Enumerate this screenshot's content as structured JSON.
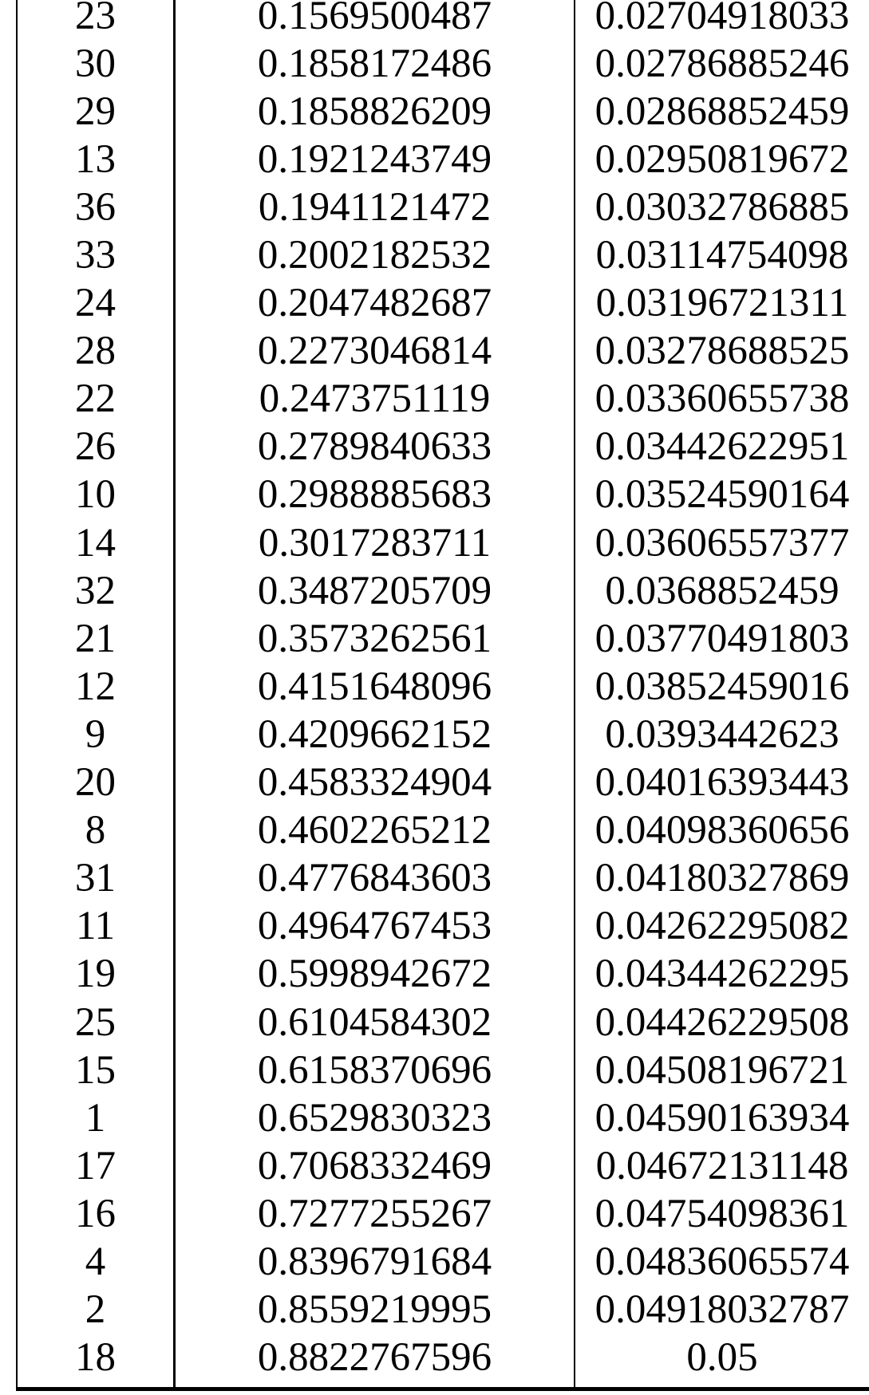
{
  "page": {
    "background_color": "#ffffff",
    "text_color": "#000000",
    "rule_color": "#000000"
  },
  "table": {
    "description_note": "",
    "rows": [
      [
        "23",
        "0.1569500487",
        "0.02704918033"
      ],
      [
        "30",
        "0.1858172486",
        "0.02786885246"
      ],
      [
        "29",
        "0.1858826209",
        "0.02868852459"
      ],
      [
        "13",
        "0.1921243749",
        "0.02950819672"
      ],
      [
        "36",
        "0.1941121472",
        "0.03032786885"
      ],
      [
        "33",
        "0.2002182532",
        "0.03114754098"
      ],
      [
        "24",
        "0.2047482687",
        "0.03196721311"
      ],
      [
        "28",
        "0.2273046814",
        "0.03278688525"
      ],
      [
        "22",
        "0.2473751119",
        "0.03360655738"
      ],
      [
        "26",
        "0.2789840633",
        "0.03442622951"
      ],
      [
        "10",
        "0.2988885683",
        "0.03524590164"
      ],
      [
        "14",
        "0.3017283711",
        "0.03606557377"
      ],
      [
        "32",
        "0.3487205709",
        "0.0368852459"
      ],
      [
        "21",
        "0.3573262561",
        "0.03770491803"
      ],
      [
        "12",
        "0.4151648096",
        "0.03852459016"
      ],
      [
        "9",
        "0.4209662152",
        "0.0393442623"
      ],
      [
        "20",
        "0.4583324904",
        "0.04016393443"
      ],
      [
        "8",
        "0.4602265212",
        "0.04098360656"
      ],
      [
        "31",
        "0.4776843603",
        "0.04180327869"
      ],
      [
        "11",
        "0.4964767453",
        "0.04262295082"
      ],
      [
        "19",
        "0.5998942672",
        "0.04344262295"
      ],
      [
        "25",
        "0.6104584302",
        "0.04426229508"
      ],
      [
        "15",
        "0.6158370696",
        "0.04508196721"
      ],
      [
        "1",
        "0.6529830323",
        "0.04590163934"
      ],
      [
        "17",
        "0.7068332469",
        "0.04672131148"
      ],
      [
        "16",
        "0.7277255267",
        "0.04754098361"
      ],
      [
        "4",
        "0.8396791684",
        "0.04836065574"
      ],
      [
        "2",
        "0.8559219995",
        "0.04918032787"
      ],
      [
        "18",
        "0.8822767596",
        "0.05"
      ]
    ]
  }
}
